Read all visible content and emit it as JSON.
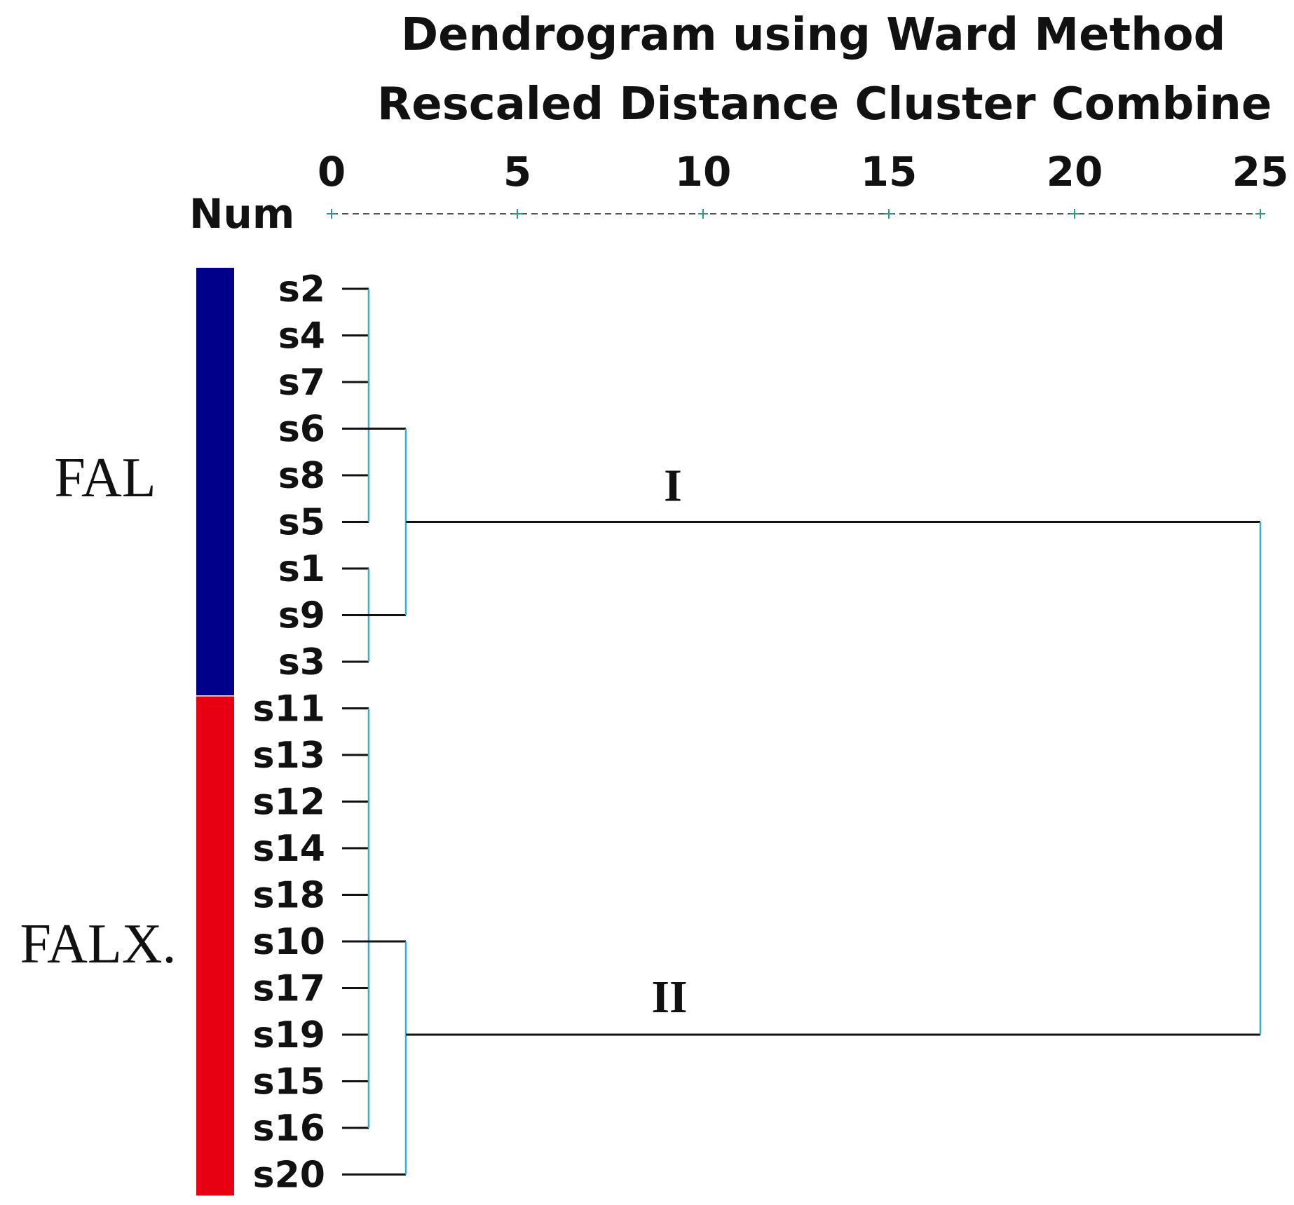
{
  "title": "Dendrogram using Ward Method",
  "subtitle": "Rescaled Distance Cluster Combine",
  "axis": {
    "label": "Num",
    "ticks": [
      "0",
      "5",
      "10",
      "15",
      "20",
      "25"
    ],
    "max": 25
  },
  "groups": [
    {
      "label": "FAL",
      "color": "#00008b",
      "first_leaf": 0,
      "last_leaf": 8
    },
    {
      "label": "FALX.",
      "color": "#e60012",
      "first_leaf": 9,
      "last_leaf": 19
    }
  ],
  "leaves": [
    "s2",
    "s4",
    "s7",
    "s6",
    "s8",
    "s5",
    "s1",
    "s9",
    "s3",
    "s11",
    "s13",
    "s12",
    "s14",
    "s18",
    "s10",
    "s17",
    "s19",
    "s15",
    "s16",
    "s20"
  ],
  "merges": [
    {
      "from": 0,
      "to": 5,
      "dist": 1.0
    },
    {
      "from": 6,
      "to": 8,
      "dist": 1.0
    },
    {
      "from": 9,
      "to": 18,
      "dist": 1.0
    }
  ],
  "joins": [
    {
      "from": 3,
      "to": 7,
      "dist": 2.0
    },
    {
      "from": 14,
      "to": 19,
      "dist": 2.0
    }
  ],
  "top_join": {
    "from": 5,
    "to": 16,
    "dist": 25
  },
  "cluster_labels": [
    "I",
    "II"
  ],
  "colors": {
    "line": "#111111",
    "vertical": "#2fb3c8"
  }
}
